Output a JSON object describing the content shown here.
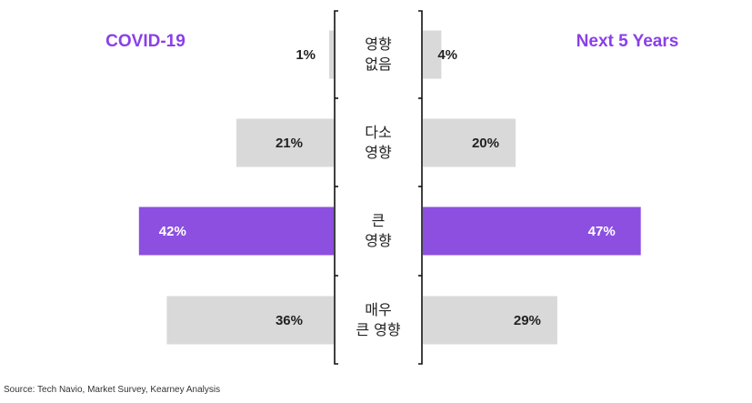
{
  "chart_data": {
    "type": "bar",
    "orientation": "horizontal-butterfly",
    "categories": [
      [
        "영향",
        "없음"
      ],
      [
        "다소",
        "영향"
      ],
      [
        "큰",
        "영향"
      ],
      [
        "매우",
        "큰 영향"
      ]
    ],
    "series": [
      {
        "name": "COVID-19",
        "side": "left",
        "values": [
          1,
          21,
          42,
          36
        ],
        "labels": [
          "1%",
          "21%",
          "42%",
          "36%"
        ]
      },
      {
        "name": "Next 5 Years",
        "side": "right",
        "values": [
          4,
          20,
          47,
          29
        ],
        "labels": [
          "4%",
          "20%",
          "47%",
          "29%"
        ]
      }
    ],
    "highlight_index": 2,
    "colors": {
      "bar": "#d9d9d9",
      "highlight": "#8c4fe0",
      "title": "#8a3fe8",
      "label_dark": "#222222",
      "label_light": "#ffffff"
    }
  },
  "source": "Source: Tech Navio, Market Survey, Kearney Analysis"
}
